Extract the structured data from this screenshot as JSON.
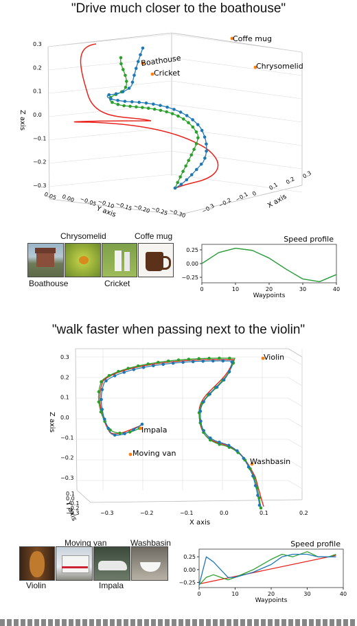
{
  "panels": [
    {
      "title": "\"Drive much closer to the boathouse\"",
      "plot3d": {
        "zlabel": "Z axis",
        "ylabel": "Y axis",
        "xlabel": "X axis",
        "z_ticks": [
          "0.3",
          "0.2",
          "0.1",
          "0.0",
          "−0.1",
          "−0.2",
          "−0.3"
        ],
        "y_ticks": [
          "0.05",
          "0.00",
          "−0.05",
          "−0.10",
          "−0.15",
          "−0.20",
          "−0.25",
          "−0.30"
        ],
        "x_ticks": [
          "−0.3",
          "−0.2",
          "−0.1",
          "0",
          "0.1",
          "0.2",
          "0.3"
        ],
        "objects": [
          "Coffe mug",
          "Chrysomelid",
          "Boathouse",
          "Cricket"
        ]
      },
      "thumbs": {
        "top_labels": [
          "Chrysomelid",
          "Coffe mug"
        ],
        "bottom_labels": [
          "Boathouse",
          "Cricket"
        ]
      },
      "speed": {
        "title": "Speed profile",
        "xlabel": "Waypoints",
        "y_ticks": [
          "0.25",
          "0.00",
          "−0.25"
        ],
        "x_ticks": [
          "0",
          "10",
          "20",
          "30",
          "40"
        ]
      }
    },
    {
      "title": "\"walk faster when passing next to the violin\"",
      "plot3d": {
        "zlabel": "Z axis",
        "ylabel": "Y axis",
        "xlabel": "X axis",
        "z_ticks": [
          "0.3",
          "0.2",
          "0.1",
          "0.0",
          "−0.1",
          "−0.2",
          "−0.3"
        ],
        "y_ticks": [
          "0.1",
          "0.0",
          "−0.1",
          "−0.2",
          "−0.3"
        ],
        "x_ticks": [
          "−0.3",
          "−0.2",
          "−0.1",
          "0.0",
          "0.1",
          "0.2"
        ],
        "objects": [
          "Violin",
          "Impala",
          "Moving van",
          "Washbasin"
        ]
      },
      "thumbs": {
        "top_labels": [
          "Moving van",
          "Washbasin"
        ],
        "bottom_labels": [
          "Violin",
          "Impala"
        ]
      },
      "speed": {
        "title": "Speed profile",
        "xlabel": "Waypoints",
        "y_ticks": [
          "0.25",
          "0.00",
          "−0.25"
        ],
        "x_ticks": [
          "0",
          "10",
          "20",
          "30",
          "40"
        ]
      }
    }
  ],
  "colors": {
    "red": "#e8231c",
    "green": "#2ca02c",
    "blue": "#1f77b4",
    "object": "#ff7f0e"
  },
  "chart_data": [
    {
      "type": "line",
      "title": "Speed profile",
      "xlabel": "Waypoints",
      "ylabel": "",
      "xlim": [
        0,
        40
      ],
      "ylim": [
        -0.35,
        0.35
      ],
      "series": [
        {
          "x": [
            0,
            5,
            10,
            15,
            20,
            25,
            30,
            35,
            40
          ],
          "values": [
            0.0,
            0.2,
            0.28,
            0.24,
            0.1,
            -0.1,
            -0.28,
            -0.33,
            -0.2
          ]
        },
        {
          "x": [
            0,
            5,
            10,
            15,
            20,
            25,
            30,
            35,
            40
          ],
          "values": [
            0.0,
            0.2,
            0.28,
            0.24,
            0.1,
            -0.1,
            -0.28,
            -0.33,
            -0.2
          ]
        }
      ]
    },
    {
      "type": "line",
      "title": "Speed profile",
      "xlabel": "Waypoints",
      "ylabel": "",
      "xlim": [
        0,
        40
      ],
      "ylim": [
        -0.35,
        0.4
      ],
      "series": [
        {
          "x": [
            0,
            2,
            4,
            6,
            8,
            10,
            15,
            20,
            23,
            26,
            30,
            33,
            36,
            38
          ],
          "values": [
            -0.3,
            0.25,
            0.15,
            0.0,
            -0.15,
            -0.15,
            -0.05,
            0.1,
            0.25,
            0.3,
            0.3,
            0.25,
            0.25,
            0.25
          ]
        },
        {
          "x": [
            0,
            2,
            4,
            6,
            8,
            10,
            15,
            20,
            23,
            26,
            30,
            33,
            36,
            38
          ],
          "values": [
            -0.3,
            -0.15,
            -0.1,
            -0.15,
            -0.2,
            -0.15,
            0.0,
            0.2,
            0.3,
            0.25,
            0.35,
            0.25,
            0.25,
            0.3
          ]
        },
        {
          "x": [
            0,
            38
          ],
          "values": [
            -0.28,
            0.28
          ]
        }
      ]
    }
  ]
}
